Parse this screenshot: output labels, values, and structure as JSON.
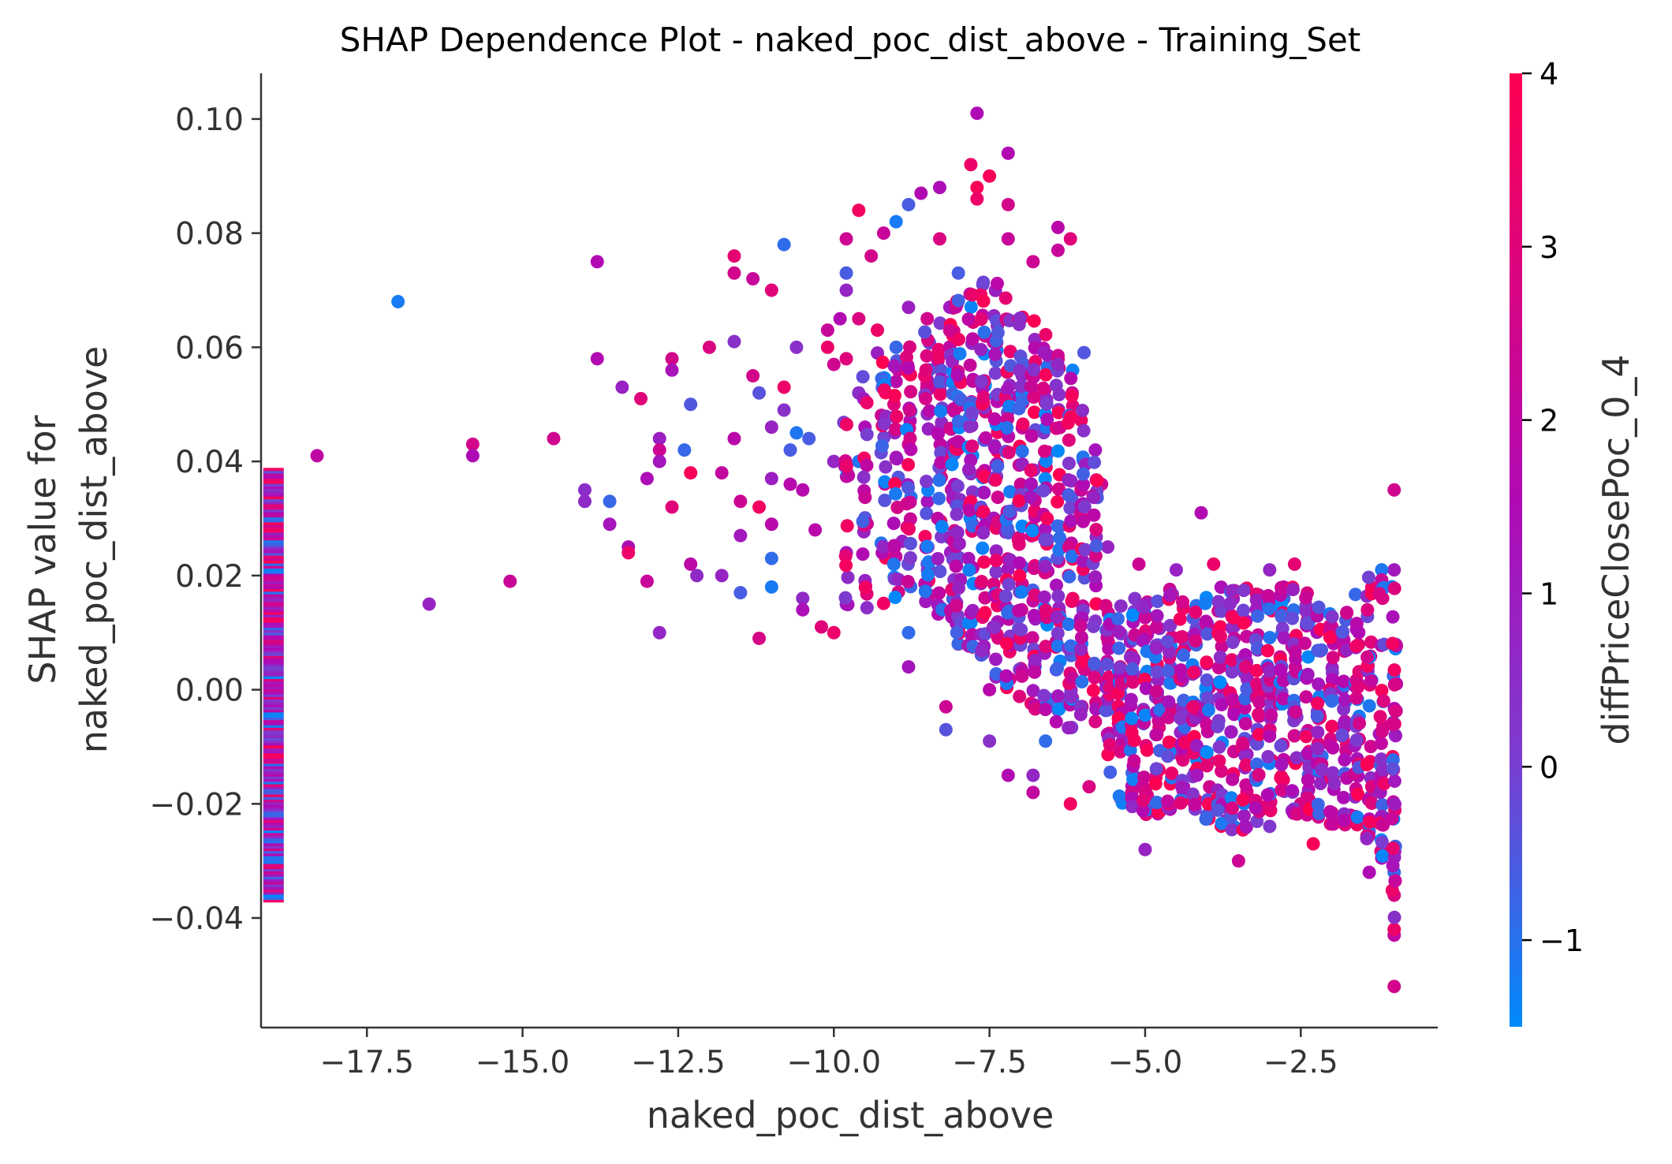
{
  "chart_data": {
    "type": "scatter",
    "title": "SHAP Dependence Plot - naked_poc_dist_above - Training_Set",
    "xlabel": "naked_poc_dist_above",
    "ylabel_lines": [
      "SHAP value for",
      "naked_poc_dist_above"
    ],
    "xlim": [
      -19.2,
      -0.3
    ],
    "ylim": [
      -0.0592,
      0.108
    ],
    "x_ticks": [
      -17.5,
      -15.0,
      -12.5,
      -10.0,
      -7.5,
      -5.0,
      -2.5
    ],
    "x_tick_labels": [
      "−17.5",
      "−15.0",
      "−12.5",
      "−10.0",
      "−7.5",
      "−5.0",
      "−2.5"
    ],
    "y_ticks": [
      -0.04,
      -0.02,
      0.0,
      0.02,
      0.04,
      0.06,
      0.08,
      0.1
    ],
    "y_tick_labels": [
      "−0.04",
      "−0.02",
      "0.00",
      "0.02",
      "0.04",
      "0.06",
      "0.08",
      "0.10"
    ],
    "grid": false,
    "colorbar": {
      "label": "diffPriceClosePoc_0_4",
      "range": [
        -1.5,
        4.0
      ],
      "ticks": [
        -1,
        0,
        1,
        2,
        3,
        4
      ],
      "tick_labels": [
        "−1",
        "0",
        "1",
        "2",
        "3",
        "4"
      ],
      "colors": [
        "#008afb",
        "#7b3dd0",
        "#b00ab5",
        "#ff0051"
      ]
    },
    "missing_strip": {
      "x": -19.0,
      "y_range": [
        -0.037,
        0.039
      ]
    },
    "points": [
      [
        -18.3,
        0.041,
        2.0
      ],
      [
        -17.0,
        0.068,
        -1.2
      ],
      [
        -16.5,
        0.015,
        0.8
      ],
      [
        -15.8,
        0.043,
        2.6
      ],
      [
        -15.8,
        0.041,
        1.5
      ],
      [
        -15.2,
        0.019,
        2.3
      ],
      [
        -14.5,
        0.044,
        2.5
      ],
      [
        -14.0,
        0.035,
        0.5
      ],
      [
        -14.0,
        0.033,
        0.6
      ],
      [
        -13.8,
        0.075,
        1.6
      ],
      [
        -13.8,
        0.058,
        1.6
      ],
      [
        -13.6,
        0.033,
        -0.8
      ],
      [
        -13.6,
        0.029,
        1.2
      ],
      [
        -13.4,
        0.053,
        0.8
      ],
      [
        -13.3,
        0.025,
        1.5
      ],
      [
        -13.3,
        0.024,
        3.4
      ],
      [
        -13.1,
        0.051,
        3.0
      ],
      [
        -13.0,
        0.019,
        2.2
      ],
      [
        -13.0,
        0.037,
        1.4
      ],
      [
        -12.8,
        0.044,
        0.9
      ],
      [
        -12.8,
        0.042,
        2.4
      ],
      [
        -12.8,
        0.04,
        1.2
      ],
      [
        -12.8,
        0.01,
        0.7
      ],
      [
        -12.6,
        0.058,
        2.6
      ],
      [
        -12.6,
        0.056,
        1.3
      ],
      [
        -12.6,
        0.032,
        3.0
      ],
      [
        -12.4,
        0.042,
        -0.8
      ],
      [
        -12.3,
        0.05,
        -0.5
      ],
      [
        -12.3,
        0.038,
        3.8
      ],
      [
        -12.3,
        0.022,
        1.9
      ],
      [
        -12.2,
        0.02,
        0.6
      ],
      [
        -12.0,
        0.06,
        2.8
      ],
      [
        -11.8,
        0.038,
        2.1
      ],
      [
        -11.8,
        0.02,
        0.8
      ],
      [
        -11.6,
        0.076,
        3.2
      ],
      [
        -11.6,
        0.073,
        2.6
      ],
      [
        -11.6,
        0.061,
        0.4
      ],
      [
        -11.6,
        0.044,
        1.8
      ],
      [
        -11.5,
        0.033,
        2.4
      ],
      [
        -11.5,
        0.027,
        1.1
      ],
      [
        -11.5,
        0.017,
        -0.6
      ],
      [
        -11.3,
        0.072,
        2.2
      ],
      [
        -11.3,
        0.055,
        2.6
      ],
      [
        -11.2,
        0.052,
        -0.4
      ],
      [
        -11.2,
        0.032,
        3.6
      ],
      [
        -11.2,
        0.009,
        2.7
      ],
      [
        -11.0,
        0.07,
        3.0
      ],
      [
        -11.0,
        0.046,
        0.8
      ],
      [
        -11.0,
        0.037,
        0.9
      ],
      [
        -11.0,
        0.029,
        1.8
      ],
      [
        -11.0,
        0.023,
        -0.9
      ],
      [
        -11.0,
        0.018,
        -1.2
      ],
      [
        -10.8,
        0.078,
        -0.9
      ],
      [
        -10.8,
        0.053,
        3.4
      ],
      [
        -10.8,
        0.049,
        0.4
      ],
      [
        -10.7,
        0.042,
        -0.6
      ],
      [
        -10.7,
        0.036,
        1.7
      ],
      [
        -10.6,
        0.06,
        0.4
      ],
      [
        -10.6,
        0.045,
        -1.1
      ],
      [
        -10.5,
        0.035,
        1.7
      ],
      [
        -10.5,
        0.016,
        0.6
      ],
      [
        -10.5,
        0.014,
        1.4
      ],
      [
        -10.4,
        0.044,
        -0.6
      ],
      [
        -10.3,
        0.028,
        1.8
      ],
      [
        -10.2,
        0.011,
        3.0
      ],
      [
        -10.1,
        0.063,
        2.2
      ],
      [
        -10.1,
        0.06,
        3.4
      ],
      [
        -10.0,
        0.057,
        2.5
      ],
      [
        -10.0,
        0.04,
        0.7
      ],
      [
        -10.0,
        0.01,
        3.4
      ],
      [
        -9.9,
        0.065,
        1.6
      ],
      [
        -9.8,
        0.079,
        2.4
      ],
      [
        -9.8,
        0.073,
        -0.6
      ],
      [
        -9.8,
        0.07,
        0.7
      ],
      [
        -9.8,
        0.058,
        3.0
      ],
      [
        -9.8,
        0.024,
        1.3
      ],
      [
        -9.8,
        0.015,
        0.6
      ],
      [
        -9.6,
        0.084,
        3.6
      ],
      [
        -9.6,
        0.065,
        2.8
      ],
      [
        -9.6,
        0.052,
        0.5
      ],
      [
        -9.6,
        0.04,
        -1.1
      ],
      [
        -9.5,
        0.046,
        1.5
      ],
      [
        -9.5,
        0.03,
        2.1
      ],
      [
        -9.4,
        0.076,
        2.6
      ],
      [
        -9.3,
        0.063,
        3.4
      ],
      [
        -9.3,
        0.059,
        0.9
      ],
      [
        -9.2,
        0.08,
        2.2
      ],
      [
        -9.0,
        0.082,
        -1.2
      ],
      [
        -9.0,
        0.06,
        -0.8
      ],
      [
        -9.0,
        0.054,
        1.8
      ],
      [
        -8.9,
        0.026,
        0.9
      ],
      [
        -8.8,
        0.085,
        -0.6
      ],
      [
        -8.8,
        0.067,
        0.9
      ],
      [
        -8.8,
        0.004,
        1.2
      ],
      [
        -8.8,
        0.01,
        -0.9
      ],
      [
        -8.6,
        0.087,
        1.6
      ],
      [
        -8.5,
        0.065,
        2.6
      ],
      [
        -8.5,
        0.022,
        -0.4
      ],
      [
        -8.3,
        0.088,
        1.4
      ],
      [
        -8.3,
        0.079,
        2.8
      ],
      [
        -8.2,
        -0.003,
        2.4
      ],
      [
        -8.2,
        -0.007,
        -0.4
      ],
      [
        -8.0,
        0.073,
        -0.6
      ],
      [
        -8.0,
        0.008,
        2.6
      ],
      [
        -7.8,
        0.092,
        3.4
      ],
      [
        -7.7,
        0.101,
        1.5
      ],
      [
        -7.7,
        0.088,
        3.8
      ],
      [
        -7.7,
        0.086,
        3.4
      ],
      [
        -7.6,
        0.013,
        -0.6
      ],
      [
        -7.5,
        0.09,
        3.8
      ],
      [
        -7.5,
        0.0,
        1.8
      ],
      [
        -7.5,
        -0.009,
        0.4
      ],
      [
        -7.2,
        0.094,
        1.6
      ],
      [
        -7.2,
        0.085,
        2.6
      ],
      [
        -7.2,
        0.079,
        2.2
      ],
      [
        -7.2,
        -0.015,
        1.6
      ],
      [
        -6.8,
        0.075,
        2.4
      ],
      [
        -6.8,
        -0.015,
        0.7
      ],
      [
        -6.8,
        -0.018,
        2.1
      ],
      [
        -6.6,
        -0.009,
        -0.9
      ],
      [
        -6.4,
        0.081,
        1.8
      ],
      [
        -6.4,
        0.077,
        2.2
      ],
      [
        -6.2,
        0.079,
        3.0
      ],
      [
        -6.2,
        -0.02,
        3.6
      ],
      [
        -5.9,
        -0.017,
        2.8
      ],
      [
        -5.8,
        0.042,
        1.2
      ],
      [
        -5.7,
        0.036,
        2.4
      ],
      [
        -5.6,
        0.025,
        0.8
      ],
      [
        -5.4,
        0.004,
        3.6
      ],
      [
        -5.2,
        -0.019,
        2.2
      ],
      [
        -5.1,
        0.022,
        2.4
      ],
      [
        -5.0,
        -0.028,
        0.8
      ],
      [
        -4.8,
        -0.021,
        2.2
      ],
      [
        -4.5,
        0.021,
        0.8
      ],
      [
        -4.3,
        -0.011,
        3.2
      ],
      [
        -4.1,
        0.031,
        1.6
      ],
      [
        -3.9,
        0.022,
        3.4
      ],
      [
        -3.7,
        -0.023,
        1.8
      ],
      [
        -3.5,
        -0.03,
        2.4
      ],
      [
        -3.4,
        -0.024,
        1.5
      ],
      [
        -3.0,
        0.021,
        0.7
      ],
      [
        -2.6,
        0.022,
        3.2
      ],
      [
        -2.5,
        -0.02,
        2.8
      ],
      [
        -2.3,
        -0.027,
        3.8
      ],
      [
        -1.7,
        -0.022,
        1.9
      ],
      [
        -1.4,
        -0.032,
        1.5
      ],
      [
        -1.0,
        0.035,
        2.5
      ],
      [
        -1.0,
        -0.052,
        2.6
      ],
      [
        -1.0,
        -0.043,
        2.0
      ],
      [
        -1.0,
        -0.042,
        3.4
      ],
      [
        -1.0,
        -0.036,
        2.8
      ],
      [
        -1.0,
        -0.032,
        -0.8
      ],
      [
        -1.0,
        0.021,
        1.1
      ],
      [
        -1.2,
        0.021,
        -1.1
      ]
    ]
  }
}
